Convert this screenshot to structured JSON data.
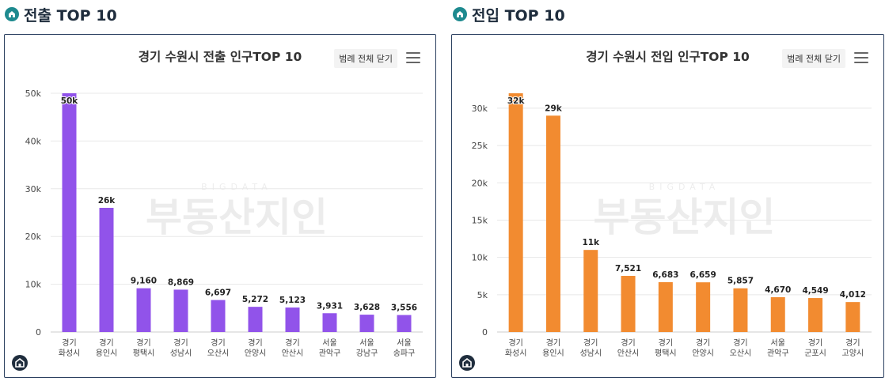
{
  "left": {
    "section_title": "전출 TOP 10",
    "legend_button": "범례 전체 닫기",
    "chart_data": {
      "type": "bar",
      "title": "경기 수원시 전출 인구TOP 10",
      "categories": [
        "경기\n화성시",
        "경기\n용인시",
        "경기\n평택시",
        "경기\n성남시",
        "경기\n오산시",
        "경기\n안양시",
        "경기\n안산시",
        "서울\n관악구",
        "서울\n강남구",
        "서울\n송파구"
      ],
      "values": [
        50000,
        26000,
        9160,
        8869,
        6697,
        5272,
        5123,
        3931,
        3628,
        3556
      ],
      "data_labels": [
        "50k",
        "26k",
        "9,160",
        "8,869",
        "6,697",
        "5,272",
        "5,123",
        "3,931",
        "3,628",
        "3,556"
      ],
      "yticks": [
        0,
        10000,
        20000,
        30000,
        40000,
        50000
      ],
      "ytick_labels": [
        "0",
        "10k",
        "20k",
        "30k",
        "40k",
        "50k"
      ],
      "ylim": [
        0,
        50000
      ],
      "color": "#9153ea",
      "grid": true
    }
  },
  "right": {
    "section_title": "전입 TOP 10",
    "legend_button": "범례 전체 닫기",
    "chart_data": {
      "type": "bar",
      "title": "경기 수원시 전입 인구TOP 10",
      "categories": [
        "경기\n화성시",
        "경기\n용인시",
        "경기\n성남시",
        "경기\n안산시",
        "경기\n평택시",
        "경기\n안양시",
        "경기\n오산시",
        "서울\n관악구",
        "경기\n군포시",
        "경기\n고양시"
      ],
      "values": [
        32000,
        29000,
        11000,
        7521,
        6683,
        6659,
        5857,
        4670,
        4549,
        4012
      ],
      "data_labels": [
        "32k",
        "29k",
        "11k",
        "7,521",
        "6,683",
        "6,659",
        "5,857",
        "4,670",
        "4,549",
        "4,012"
      ],
      "yticks": [
        0,
        5000,
        10000,
        15000,
        20000,
        25000,
        30000
      ],
      "ytick_labels": [
        "0",
        "5k",
        "10k",
        "15k",
        "20k",
        "25k",
        "30k"
      ],
      "ylim": [
        0,
        32000
      ],
      "color": "#f28b30",
      "grid": true
    }
  },
  "watermark": {
    "small": "BIGDATA",
    "large": "부동산지인"
  }
}
